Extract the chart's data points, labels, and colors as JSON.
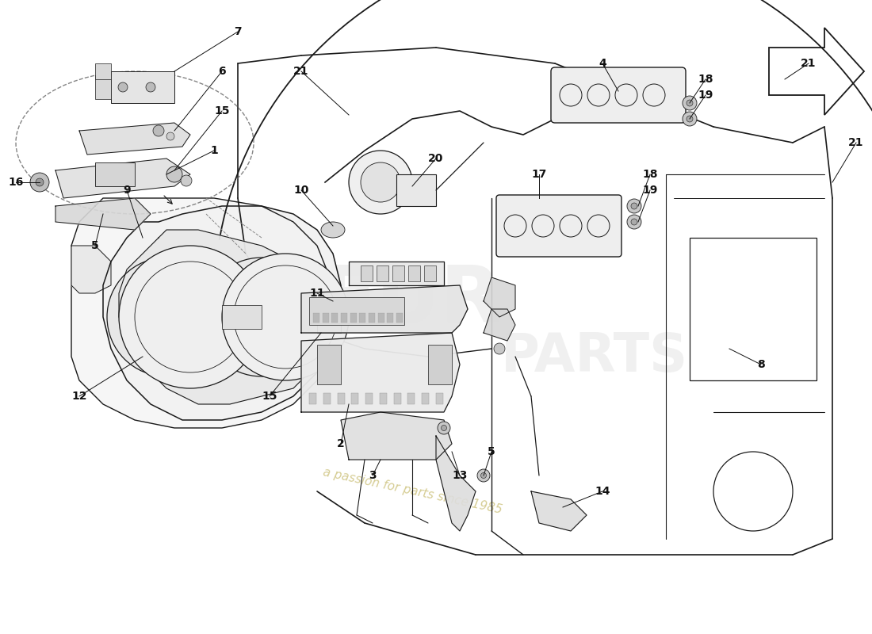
{
  "bg_color": "#ffffff",
  "line_color": "#1a1a1a",
  "lw_main": 1.0,
  "lw_thin": 0.6,
  "lw_thick": 1.4,
  "label_fontsize": 10,
  "label_color": "#111111",
  "watermark1_color": "#d8d8d8",
  "watermark2_color": "#d4cc88",
  "figsize": [
    11.0,
    8.0
  ],
  "dpi": 100,
  "xlim": [
    0,
    110
  ],
  "ylim": [
    0,
    80
  ]
}
